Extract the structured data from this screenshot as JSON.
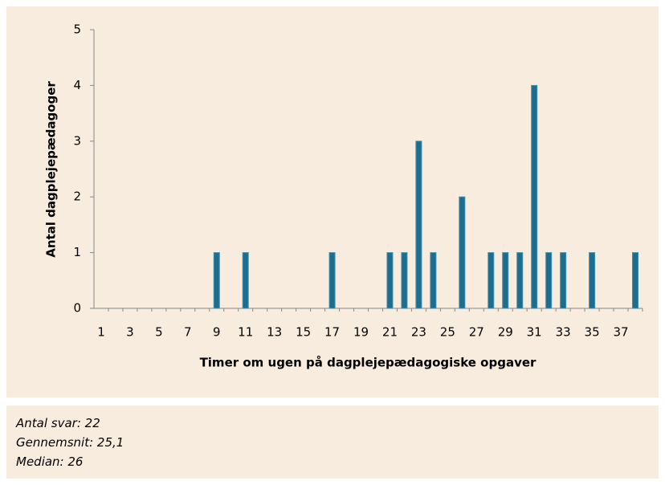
{
  "chart_data": {
    "type": "bar",
    "categories": [
      1,
      null,
      3,
      null,
      5,
      null,
      7,
      null,
      9,
      null,
      11,
      null,
      13,
      null,
      15,
      null,
      17,
      null,
      19,
      null,
      21,
      null,
      23,
      null,
      25,
      null,
      27,
      null,
      29,
      null,
      31,
      null,
      33,
      null,
      35,
      null,
      37,
      null
    ],
    "values": [
      0,
      0,
      0,
      0,
      0,
      0,
      0,
      0,
      1,
      0,
      1,
      0,
      0,
      0,
      0,
      0,
      1,
      0,
      0,
      0,
      1,
      1,
      3,
      1,
      0,
      2,
      0,
      1,
      1,
      1,
      4,
      1,
      1,
      0,
      1,
      0,
      0,
      1
    ],
    "color": "#1f6d8e",
    "ylim": [
      0,
      5
    ],
    "yticks": [
      0,
      1,
      2,
      3,
      4,
      5
    ],
    "x_label": "Timer om ugen på dagplejepædagogiske opgaver",
    "y_label": "Antal dagplejepædagoger"
  },
  "notes": [
    "Antal svar: 22",
    "Gennemsnit: 25,1",
    "Median: 26"
  ]
}
